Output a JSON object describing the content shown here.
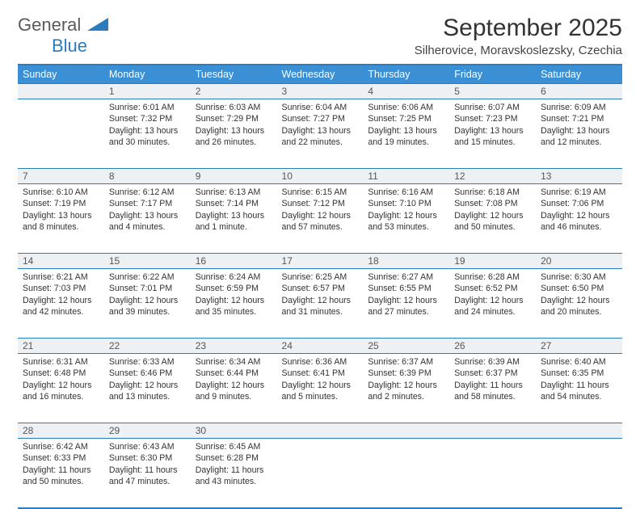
{
  "logo": {
    "part1": "General",
    "part2": "Blue"
  },
  "title": "September 2025",
  "location": "Silherovice, Moravskoslezsky, Czechia",
  "colors": {
    "header_bg": "#3b8fd4",
    "border": "#2b7bbf",
    "daynum_bg": "#eef1f4",
    "text": "#333333",
    "logo_gray": "#5a5a5a",
    "logo_blue": "#2b7bbf"
  },
  "day_names": [
    "Sunday",
    "Monday",
    "Tuesday",
    "Wednesday",
    "Thursday",
    "Friday",
    "Saturday"
  ],
  "weeks": [
    {
      "nums": [
        "",
        "1",
        "2",
        "3",
        "4",
        "5",
        "6"
      ],
      "cells": [
        null,
        {
          "sunrise": "6:01 AM",
          "sunset": "7:32 PM",
          "daylight": "13 hours and 30 minutes."
        },
        {
          "sunrise": "6:03 AM",
          "sunset": "7:29 PM",
          "daylight": "13 hours and 26 minutes."
        },
        {
          "sunrise": "6:04 AM",
          "sunset": "7:27 PM",
          "daylight": "13 hours and 22 minutes."
        },
        {
          "sunrise": "6:06 AM",
          "sunset": "7:25 PM",
          "daylight": "13 hours and 19 minutes."
        },
        {
          "sunrise": "6:07 AM",
          "sunset": "7:23 PM",
          "daylight": "13 hours and 15 minutes."
        },
        {
          "sunrise": "6:09 AM",
          "sunset": "7:21 PM",
          "daylight": "13 hours and 12 minutes."
        }
      ]
    },
    {
      "nums": [
        "7",
        "8",
        "9",
        "10",
        "11",
        "12",
        "13"
      ],
      "cells": [
        {
          "sunrise": "6:10 AM",
          "sunset": "7:19 PM",
          "daylight": "13 hours and 8 minutes."
        },
        {
          "sunrise": "6:12 AM",
          "sunset": "7:17 PM",
          "daylight": "13 hours and 4 minutes."
        },
        {
          "sunrise": "6:13 AM",
          "sunset": "7:14 PM",
          "daylight": "13 hours and 1 minute."
        },
        {
          "sunrise": "6:15 AM",
          "sunset": "7:12 PM",
          "daylight": "12 hours and 57 minutes."
        },
        {
          "sunrise": "6:16 AM",
          "sunset": "7:10 PM",
          "daylight": "12 hours and 53 minutes."
        },
        {
          "sunrise": "6:18 AM",
          "sunset": "7:08 PM",
          "daylight": "12 hours and 50 minutes."
        },
        {
          "sunrise": "6:19 AM",
          "sunset": "7:06 PM",
          "daylight": "12 hours and 46 minutes."
        }
      ]
    },
    {
      "nums": [
        "14",
        "15",
        "16",
        "17",
        "18",
        "19",
        "20"
      ],
      "cells": [
        {
          "sunrise": "6:21 AM",
          "sunset": "7:03 PM",
          "daylight": "12 hours and 42 minutes."
        },
        {
          "sunrise": "6:22 AM",
          "sunset": "7:01 PM",
          "daylight": "12 hours and 39 minutes."
        },
        {
          "sunrise": "6:24 AM",
          "sunset": "6:59 PM",
          "daylight": "12 hours and 35 minutes."
        },
        {
          "sunrise": "6:25 AM",
          "sunset": "6:57 PM",
          "daylight": "12 hours and 31 minutes."
        },
        {
          "sunrise": "6:27 AM",
          "sunset": "6:55 PM",
          "daylight": "12 hours and 27 minutes."
        },
        {
          "sunrise": "6:28 AM",
          "sunset": "6:52 PM",
          "daylight": "12 hours and 24 minutes."
        },
        {
          "sunrise": "6:30 AM",
          "sunset": "6:50 PM",
          "daylight": "12 hours and 20 minutes."
        }
      ]
    },
    {
      "nums": [
        "21",
        "22",
        "23",
        "24",
        "25",
        "26",
        "27"
      ],
      "cells": [
        {
          "sunrise": "6:31 AM",
          "sunset": "6:48 PM",
          "daylight": "12 hours and 16 minutes."
        },
        {
          "sunrise": "6:33 AM",
          "sunset": "6:46 PM",
          "daylight": "12 hours and 13 minutes."
        },
        {
          "sunrise": "6:34 AM",
          "sunset": "6:44 PM",
          "daylight": "12 hours and 9 minutes."
        },
        {
          "sunrise": "6:36 AM",
          "sunset": "6:41 PM",
          "daylight": "12 hours and 5 minutes."
        },
        {
          "sunrise": "6:37 AM",
          "sunset": "6:39 PM",
          "daylight": "12 hours and 2 minutes."
        },
        {
          "sunrise": "6:39 AM",
          "sunset": "6:37 PM",
          "daylight": "11 hours and 58 minutes."
        },
        {
          "sunrise": "6:40 AM",
          "sunset": "6:35 PM",
          "daylight": "11 hours and 54 minutes."
        }
      ]
    },
    {
      "nums": [
        "28",
        "29",
        "30",
        "",
        "",
        "",
        ""
      ],
      "cells": [
        {
          "sunrise": "6:42 AM",
          "sunset": "6:33 PM",
          "daylight": "11 hours and 50 minutes."
        },
        {
          "sunrise": "6:43 AM",
          "sunset": "6:30 PM",
          "daylight": "11 hours and 47 minutes."
        },
        {
          "sunrise": "6:45 AM",
          "sunset": "6:28 PM",
          "daylight": "11 hours and 43 minutes."
        },
        null,
        null,
        null,
        null
      ]
    }
  ],
  "labels": {
    "sunrise": "Sunrise:",
    "sunset": "Sunset:",
    "daylight": "Daylight:"
  }
}
